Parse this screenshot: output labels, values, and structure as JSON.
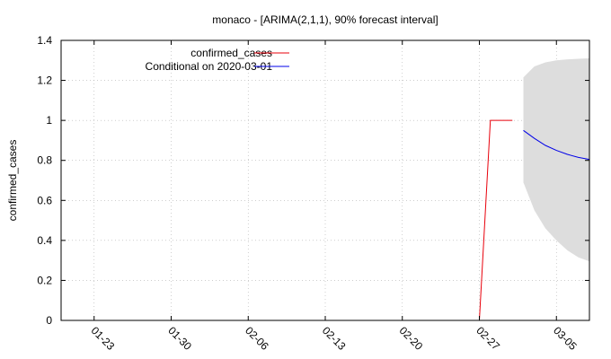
{
  "chart_data": {
    "type": "line",
    "title": "monaco -  [ARIMA(2,1,1), 90% forecast interval]",
    "xlabel": "",
    "ylabel": "confirmed_cases",
    "xlim": [
      "2020-01-20",
      "2020-03-08"
    ],
    "ylim": [
      0,
      1.4
    ],
    "grid": true,
    "legend_position": "top-left",
    "x_ticks": [
      "01-23",
      "01-30",
      "02-06",
      "02-13",
      "02-20",
      "02-27",
      "03-05"
    ],
    "x_tick_dates": [
      "2020-01-23",
      "2020-01-30",
      "2020-02-06",
      "2020-02-13",
      "2020-02-20",
      "2020-02-27",
      "2020-03-05"
    ],
    "y_ticks": [
      "0",
      "0.2",
      "0.4",
      "0.6",
      "0.8",
      "1",
      "1.2",
      "1.4"
    ],
    "y_tick_values": [
      0,
      0.2,
      0.4,
      0.6,
      0.8,
      1.0,
      1.2,
      1.4
    ],
    "series": [
      {
        "name": "confirmed_cases",
        "color": "#e8000b",
        "x": [
          "2020-02-27",
          "2020-02-28",
          "2020-02-29",
          "2020-03-01"
        ],
        "y": [
          0,
          1,
          1,
          1
        ]
      },
      {
        "name": "Conditional on 2020-03-01",
        "color": "#0000e8",
        "x": [
          "2020-03-02",
          "2020-03-03",
          "2020-03-04",
          "2020-03-05",
          "2020-03-06",
          "2020-03-07",
          "2020-03-08"
        ],
        "y": [
          0.95,
          0.91,
          0.875,
          0.85,
          0.83,
          0.815,
          0.805
        ]
      }
    ],
    "interval": {
      "color": "#dddddd",
      "x": [
        "2020-03-02",
        "2020-03-03",
        "2020-03-04",
        "2020-03-05",
        "2020-03-06",
        "2020-03-07",
        "2020-03-08"
      ],
      "lower": [
        0.69,
        0.55,
        0.46,
        0.4,
        0.35,
        0.315,
        0.295
      ],
      "upper": [
        1.215,
        1.27,
        1.29,
        1.3,
        1.305,
        1.308,
        1.31
      ]
    }
  }
}
